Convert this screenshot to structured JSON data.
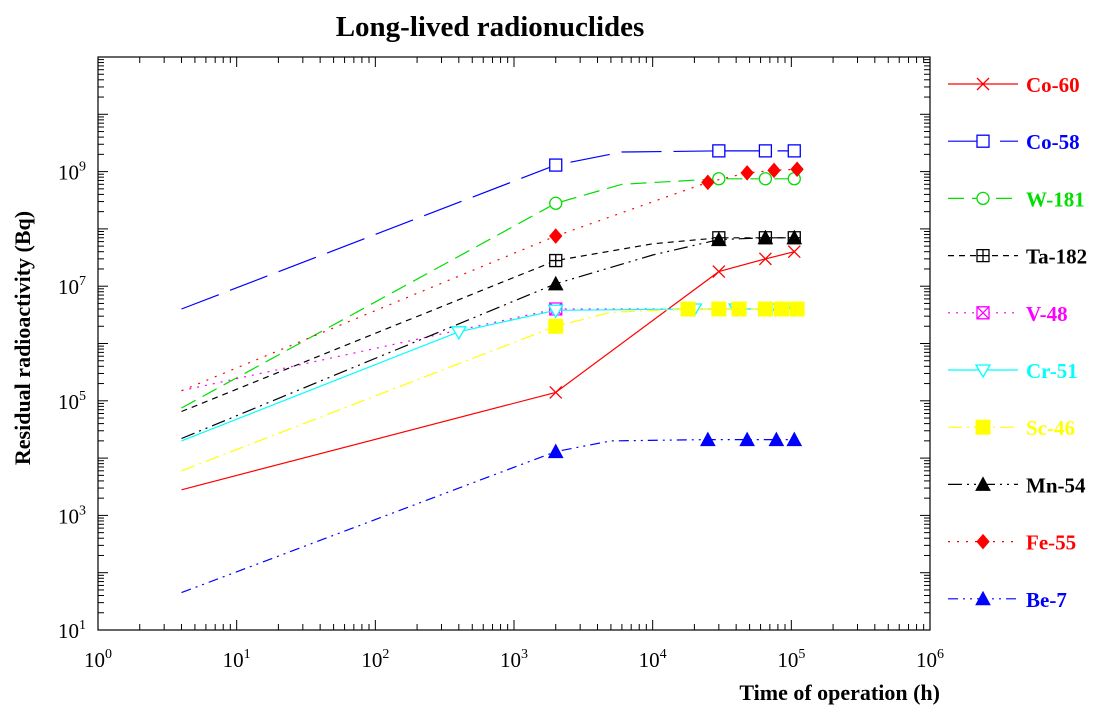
{
  "chart_data": {
    "type": "line",
    "title": "Long-lived  radionuclides",
    "xlabel": "Time  of  operation  (h)",
    "ylabel": "Residual  radioactivity  (Bq)",
    "xscale": "log",
    "yscale": "log",
    "xlim": [
      1,
      1000000
    ],
    "ylim": [
      10,
      100000000000
    ],
    "x_ticks": [
      {
        "base": "10",
        "exp": "0"
      },
      {
        "base": "10",
        "exp": "1"
      },
      {
        "base": "10",
        "exp": "2"
      },
      {
        "base": "10",
        "exp": "3"
      },
      {
        "base": "10",
        "exp": "4"
      },
      {
        "base": "10",
        "exp": "5"
      },
      {
        "base": "10",
        "exp": "6"
      }
    ],
    "y_ticks": [
      {
        "base": "10",
        "exp": "1"
      },
      {
        "base": "10",
        "exp": "3"
      },
      {
        "base": "10",
        "exp": "5"
      },
      {
        "base": "10",
        "exp": "7"
      },
      {
        "base": "10",
        "exp": "9"
      }
    ],
    "grid": false,
    "legend_position": "right",
    "series": [
      {
        "name": "Co-60",
        "color": "#ff0000",
        "dash": "",
        "marker": "x",
        "x": [
          4,
          2000,
          30000,
          65000,
          105000
        ],
        "y": [
          2800,
          140000,
          18000000,
          30000000,
          40000000
        ],
        "marker_x": [
          2000,
          30000,
          65000,
          105000
        ]
      },
      {
        "name": "Co-58",
        "color": "#0000ff",
        "dash": "40 12",
        "marker": "square-open",
        "x": [
          4,
          2000,
          6000,
          30000,
          65000,
          105000
        ],
        "y": [
          4000000,
          1300000000,
          2200000000,
          2300000000,
          2300000000,
          2300000000
        ],
        "marker_x": [
          2000,
          30000,
          65000,
          105000
        ]
      },
      {
        "name": "W-181",
        "color": "#00dd00",
        "dash": "16 8",
        "marker": "circle-open",
        "x": [
          4,
          2000,
          6000,
          30000,
          65000,
          105000
        ],
        "y": [
          75000,
          280000000,
          600000000,
          750000000,
          750000000,
          750000000
        ],
        "marker_x": [
          2000,
          30000,
          65000,
          105000
        ]
      },
      {
        "name": "Ta-182",
        "color": "#000000",
        "dash": "6 5",
        "marker": "square-plus",
        "x": [
          4,
          2000,
          10000,
          30000,
          65000,
          105000
        ],
        "y": [
          65000,
          28000000,
          55000000,
          70000000,
          70000000,
          70000000
        ],
        "marker_x": [
          2000,
          30000,
          65000,
          105000
        ]
      },
      {
        "name": "V-48",
        "color": "#ff00ff",
        "dash": "2 6",
        "marker": "square-x",
        "x": [
          4,
          2000,
          30000,
          65000,
          105000
        ],
        "y": [
          150000,
          4000000,
          4000000,
          4000000,
          4000000
        ],
        "marker_x": [
          2000,
          30000,
          65000
        ]
      },
      {
        "name": "Cr-51",
        "color": "#00ffff",
        "dash": "",
        "marker": "triangle-down-open",
        "x": [
          4,
          400,
          2000,
          20000,
          40000,
          70000,
          105000
        ],
        "y": [
          20000,
          1600000,
          3800000,
          4000000,
          4000000,
          4000000,
          4000000
        ],
        "marker_x": [
          400,
          2000,
          20000,
          40000,
          70000,
          105000
        ]
      },
      {
        "name": "Sc-46",
        "color": "#ffff00",
        "dash": "14 5 2 5",
        "marker": "square-filled",
        "x": [
          4,
          2000,
          5000,
          18000,
          110000
        ],
        "y": [
          6000,
          2000000,
          3500000,
          4000000,
          4000000
        ],
        "marker_x": [
          2000,
          18000,
          30000,
          42000,
          65000,
          85000,
          110000
        ]
      },
      {
        "name": "Mn-54",
        "color": "#000000",
        "dash": "14 5 2 5 2 5",
        "marker": "triangle-filled",
        "x": [
          4,
          2000,
          10000,
          30000,
          65000,
          105000
        ],
        "y": [
          22000,
          11000000,
          35000000,
          65000000,
          70000000,
          70000000
        ],
        "marker_x": [
          2000,
          30000,
          65000,
          105000
        ]
      },
      {
        "name": "Fe-55",
        "color": "#ff0000",
        "dash": "2 7",
        "marker": "diamond-filled",
        "x": [
          4,
          2000,
          25000,
          48000,
          75000,
          110000
        ],
        "y": [
          150000,
          75000000,
          650000000,
          950000000,
          1050000000,
          1100000000
        ],
        "marker_x": [
          2000,
          25000,
          48000,
          75000,
          110000
        ]
      },
      {
        "name": "Be-7",
        "color": "#0000ff",
        "dash": "10 5 2 5 2 5",
        "marker": "triangle-filled",
        "x": [
          4,
          2000,
          5000,
          25000,
          105000
        ],
        "y": [
          45,
          13000,
          20000,
          21000,
          21000
        ],
        "marker_x": [
          2000,
          25000,
          48000,
          78000,
          105000
        ]
      }
    ]
  }
}
